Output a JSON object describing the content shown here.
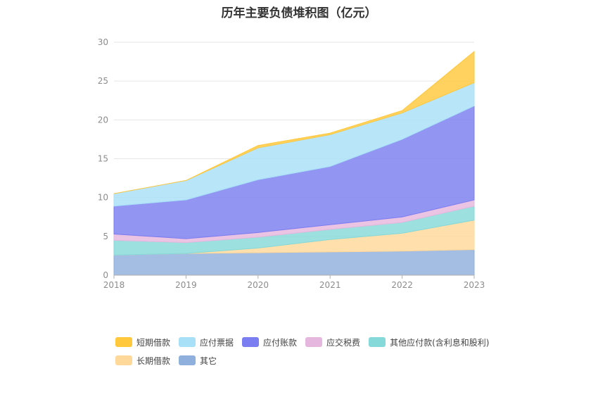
{
  "chart_data": {
    "type": "area",
    "title": "历年主要负债堆积图（亿元）",
    "xlabel": "",
    "ylabel": "",
    "x": [
      "2018",
      "2019",
      "2020",
      "2021",
      "2022",
      "2023"
    ],
    "ylim": [
      0,
      30
    ],
    "yticks": [
      "0",
      "5",
      "10",
      "15",
      "20",
      "25",
      "30"
    ],
    "stacked": true,
    "grid": true,
    "legend_position": "bottom",
    "series": [
      {
        "name": "其它",
        "color": "#8fb0dc",
        "values": [
          2.6,
          2.8,
          2.9,
          3.0,
          3.1,
          3.3
        ]
      },
      {
        "name": "长期借款",
        "color": "#ffd89a",
        "values": [
          0.0,
          0.0,
          0.6,
          1.6,
          2.3,
          3.8
        ]
      },
      {
        "name": "其他应付款(含利息和股利)",
        "color": "#86d9d9",
        "values": [
          1.9,
          1.4,
          1.4,
          1.3,
          1.4,
          1.8
        ]
      },
      {
        "name": "应交税费",
        "color": "#e6b7de",
        "values": [
          0.8,
          0.5,
          0.6,
          0.6,
          0.7,
          0.8
        ]
      },
      {
        "name": "应付账款",
        "color": "#7b7ef0",
        "values": [
          3.6,
          5.0,
          6.8,
          7.5,
          10.0,
          12.1
        ]
      },
      {
        "name": "应付票据",
        "color": "#a8e0f7",
        "values": [
          1.6,
          2.5,
          4.1,
          4.1,
          3.4,
          3.0
        ]
      },
      {
        "name": "短期借款",
        "color": "#ffc83d",
        "values": [
          0.0,
          0.0,
          0.3,
          0.2,
          0.3,
          4.0
        ]
      }
    ],
    "legend": {
      "rows": [
        [
          "短期借款",
          "应付票据",
          "应付账款",
          "应交税费",
          "其他应付款(含利息和股利)"
        ],
        [
          "长期借款",
          "其它"
        ]
      ]
    }
  }
}
